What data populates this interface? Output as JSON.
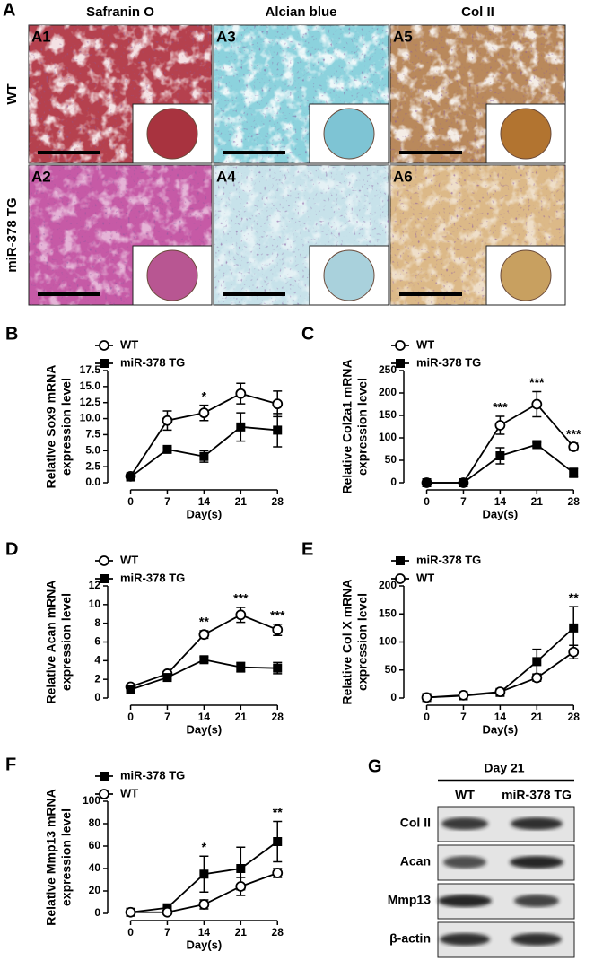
{
  "panel_a": {
    "label": "A",
    "columns": [
      "Safranin O",
      "Alcian blue",
      "Col II"
    ],
    "rows": [
      "WT",
      "miR-378 TG"
    ],
    "tiles": [
      [
        "A1",
        "A3",
        "A5"
      ],
      [
        "A2",
        "A4",
        "A6"
      ]
    ]
  },
  "chart_data": [
    {
      "type": "line",
      "panel": "B",
      "ylabel": [
        "Relative Sox9 mRNA",
        "expression level"
      ],
      "xlabel": "Day(s)",
      "x": [
        0,
        7,
        14,
        21,
        28
      ],
      "xlim": [
        -3,
        29.5
      ],
      "xticks": [
        0,
        7,
        14,
        21,
        28
      ],
      "ylim": [
        0,
        17.5
      ],
      "yticks": [
        {
          "value": 0,
          "label": "0.0"
        },
        2.5,
        {
          "value": 5,
          "label": "5.0"
        },
        7.5,
        {
          "value": 10,
          "label": "10.0"
        },
        12.5,
        {
          "value": 15,
          "label": "15.0"
        },
        17.5
      ],
      "series": [
        {
          "name": "WT",
          "color": "#000000",
          "marker": "circle-open",
          "values": [
            1.0,
            9.7,
            10.9,
            13.9,
            12.3
          ],
          "errors": [
            0.3,
            1.5,
            1.2,
            1.6,
            2.0
          ],
          "significance": [
            null,
            null,
            "*",
            null,
            null
          ]
        },
        {
          "name": "miR-378 TG",
          "color": "#000000",
          "marker": "square",
          "values": [
            0.9,
            5.2,
            4.1,
            8.7,
            8.2
          ],
          "errors": [
            0.2,
            0.3,
            0.9,
            2.2,
            2.6
          ],
          "significance": [
            null,
            null,
            null,
            null,
            null
          ]
        }
      ]
    },
    {
      "type": "line",
      "panel": "C",
      "ylabel": [
        "Relative Col2a1 mRNA",
        "expression level"
      ],
      "xlabel": "Day(s)",
      "x": [
        0,
        7,
        14,
        21,
        28
      ],
      "xlim": [
        -3,
        29.5
      ],
      "xticks": [
        0,
        7,
        14,
        21,
        28
      ],
      "ylim": [
        0,
        250
      ],
      "yticks": [
        0,
        50,
        100,
        150,
        200,
        250
      ],
      "series": [
        {
          "name": "WT",
          "color": "#000000",
          "marker": "circle-open",
          "values": [
            0,
            0,
            128,
            175,
            80
          ],
          "errors": [
            0,
            0,
            20,
            28,
            8
          ],
          "significance": [
            null,
            null,
            "***",
            "***",
            "***"
          ]
        },
        {
          "name": "miR-378 TG",
          "color": "#000000",
          "marker": "square",
          "values": [
            0,
            0,
            60,
            85,
            22
          ],
          "errors": [
            0,
            0,
            18,
            5,
            10
          ],
          "significance": [
            null,
            null,
            null,
            null,
            null
          ]
        }
      ]
    },
    {
      "type": "line",
      "panel": "D",
      "ylabel": [
        "Relative Acan mRNA",
        "expression level"
      ],
      "xlabel": "Day(s)",
      "x": [
        0,
        7,
        14,
        21,
        28
      ],
      "xlim": [
        -3,
        29.5
      ],
      "xticks": [
        0,
        7,
        14,
        21,
        28
      ],
      "ylim": [
        0,
        12
      ],
      "yticks": [
        0,
        2,
        4,
        6,
        8,
        10,
        12
      ],
      "series": [
        {
          "name": "WT",
          "color": "#000000",
          "marker": "circle-open",
          "values": [
            1.2,
            2.6,
            6.8,
            8.9,
            7.3
          ],
          "errors": [
            0.2,
            0.2,
            0.4,
            0.8,
            0.6
          ],
          "significance": [
            null,
            null,
            "**",
            "***",
            "***"
          ]
        },
        {
          "name": "miR-378 TG",
          "color": "#000000",
          "marker": "square",
          "values": [
            0.9,
            2.2,
            4.1,
            3.3,
            3.2
          ],
          "errors": [
            0.1,
            0.2,
            0.3,
            0.5,
            0.6
          ],
          "significance": [
            null,
            null,
            null,
            null,
            null
          ]
        }
      ]
    },
    {
      "type": "line",
      "panel": "E",
      "ylabel": [
        "Relative Col X mRNA",
        "expression level"
      ],
      "xlabel": "Day(s)",
      "x": [
        0,
        7,
        14,
        21,
        28
      ],
      "xlim": [
        -3,
        29.5
      ],
      "xticks": [
        0,
        7,
        14,
        21,
        28
      ],
      "ylim": [
        0,
        200
      ],
      "yticks": [
        0,
        50,
        100,
        150,
        200
      ],
      "series": [
        {
          "name": "miR-378 TG",
          "color": "#000000",
          "marker": "square",
          "values": [
            1,
            4,
            10,
            65,
            125
          ],
          "errors": [
            0,
            1,
            2,
            22,
            38
          ],
          "significance": [
            null,
            null,
            null,
            null,
            "**"
          ]
        },
        {
          "name": "WT",
          "color": "#000000",
          "marker": "circle-open",
          "values": [
            1,
            5,
            11,
            36,
            82
          ],
          "errors": [
            0,
            1,
            2,
            6,
            12
          ],
          "significance": [
            null,
            null,
            null,
            null,
            null
          ]
        }
      ]
    },
    {
      "type": "line",
      "panel": "F",
      "ylabel": [
        "Relative Mmp13 mRNA",
        "expression level"
      ],
      "xlabel": "Day(s)",
      "x": [
        0,
        7,
        14,
        21,
        28
      ],
      "xlim": [
        -3,
        29.5
      ],
      "xticks": [
        0,
        7,
        14,
        21,
        28
      ],
      "ylim": [
        0,
        100
      ],
      "yticks": [
        0,
        20,
        40,
        60,
        80,
        100
      ],
      "series": [
        {
          "name": "miR-378 TG",
          "color": "#000000",
          "marker": "square",
          "values": [
            1,
            5,
            35,
            40,
            64
          ],
          "errors": [
            0,
            1,
            16,
            19,
            18
          ],
          "significance": [
            null,
            null,
            "*",
            null,
            "**"
          ]
        },
        {
          "name": "WT",
          "color": "#000000",
          "marker": "circle-open",
          "values": [
            1,
            1,
            8,
            24,
            36
          ],
          "errors": [
            0,
            0,
            4,
            8,
            4
          ],
          "significance": [
            null,
            null,
            null,
            null,
            null
          ]
        }
      ]
    }
  ],
  "panel_g": {
    "label": "G",
    "header": "Day 21",
    "lanes": [
      "WT",
      "miR-378 TG"
    ],
    "rows": [
      "Col II",
      "Acan",
      "Mmp13",
      "β-actin"
    ]
  }
}
